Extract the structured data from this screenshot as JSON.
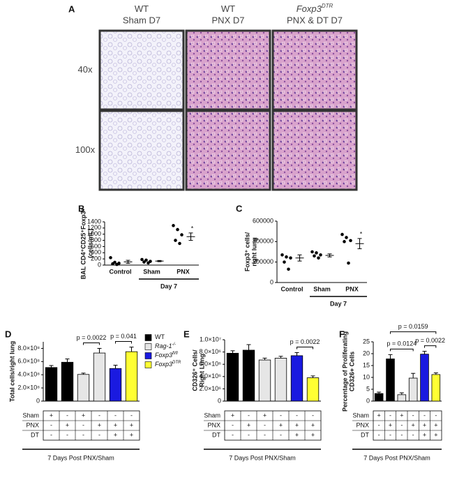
{
  "panel_a": {
    "label": "A",
    "columns": [
      {
        "line1": "WT",
        "line2": "Sham D7"
      },
      {
        "line1": "WT",
        "line2": "PNX D7"
      },
      {
        "line1": "Foxp3",
        "sup": "DTR",
        "line2": "PNX & DT D7"
      }
    ],
    "rows": [
      "40x",
      "100x"
    ]
  },
  "chart_data": [
    {
      "type": "dot",
      "panel": "B",
      "y_label": [
        "BAL  CD4⁺CD25⁺Foxp3⁺",
        "(cells/mL)"
      ],
      "categories": [
        "Control",
        "Sham",
        "PNX"
      ],
      "points": [
        [
          240,
          90,
          60,
          40,
          20
        ],
        [
          180,
          160,
          120,
          100,
          70
        ],
        [
          1280,
          1150,
          980,
          800,
          700
        ]
      ],
      "means": [
        105,
        130,
        920
      ],
      "errors": [
        50,
        20,
        120
      ],
      "ylim": [
        0,
        1400
      ],
      "yticks": [
        0,
        200,
        400,
        600,
        800,
        1000,
        1200,
        1400
      ],
      "star": "*",
      "group": {
        "label": "Day 7",
        "from": 1,
        "to": 2
      }
    },
    {
      "type": "dot",
      "panel": "C",
      "y_label": [
        "Foxp3⁺ cells/",
        "right lung"
      ],
      "categories": [
        "Control",
        "Sham",
        "PNX"
      ],
      "points": [
        [
          270000,
          250000,
          240000,
          200000,
          130000
        ],
        [
          300000,
          290000,
          270000,
          260000,
          240000
        ],
        [
          470000,
          440000,
          410000,
          400000,
          190000
        ]
      ],
      "means": [
        240000,
        265000,
        380000
      ],
      "errors": [
        30000,
        15000,
        50000
      ],
      "ylim": [
        0,
        600000
      ],
      "yticks": [
        0,
        200000,
        400000,
        600000
      ],
      "star": "*",
      "group": {
        "label": "Day 7",
        "from": 1,
        "to": 2
      }
    },
    {
      "type": "bar",
      "panel": "D",
      "y_label": [
        "Total cells/right lung"
      ],
      "values": [
        510000000,
        590000000,
        405000000,
        730000000,
        495000000,
        750000000
      ],
      "errors": [
        30000000,
        50000000,
        20000000,
        70000000,
        50000000,
        70000000
      ],
      "colors": [
        "#000000",
        "#000000",
        "#e6e6e6",
        "#e6e6e6",
        "#1a1ae0",
        "#ffff33"
      ],
      "ylim": [
        0,
        900000000
      ],
      "yticks": [
        0,
        {
          "value": 200000000,
          "label": "2.0×10⁸"
        },
        {
          "value": 400000000,
          "label": "4.0×10⁸"
        },
        {
          "value": 600000000,
          "label": "6.0×10⁸"
        },
        {
          "value": 800000000,
          "label": "8.0×10⁸"
        }
      ],
      "annotations": [
        {
          "text": "p = 0.0022",
          "bars": [
            2,
            3
          ]
        },
        {
          "text": "p = 0.041",
          "bars": [
            4,
            5
          ]
        }
      ],
      "legend": [
        {
          "name": "WT",
          "color": "#000000"
        },
        {
          "name": "Rag-1",
          "sup": "-/-",
          "color": "#e6e6e6"
        },
        {
          "name": "Foxp3",
          "sup": "fl/fl",
          "color": "#1a1ae0"
        },
        {
          "name": "Foxp3",
          "sup": "DTR",
          "color": "#ffff33"
        }
      ],
      "table": {
        "rows": [
          {
            "label": "Sham",
            "cells": [
              "+",
              "-",
              "+",
              "-",
              "-",
              "-"
            ]
          },
          {
            "label": "PNX",
            "cells": [
              "-",
              "+",
              "-",
              "+",
              "+",
              "+"
            ]
          },
          {
            "label": "DT",
            "cells": [
              "-",
              "-",
              "-",
              "-",
              "+",
              "+"
            ]
          }
        ],
        "footer": "7 Days  Post  PNX/Sham"
      }
    },
    {
      "type": "bar",
      "panel": "E",
      "y_label": [
        "CD326⁺ Cells/",
        "Right Lung"
      ],
      "values": [
        7800000,
        8300000,
        6700000,
        7000000,
        7400000,
        3800000
      ],
      "errors": [
        400000,
        900000,
        300000,
        300000,
        500000,
        300000
      ],
      "colors": [
        "#000000",
        "#000000",
        "#e6e6e6",
        "#e6e6e6",
        "#1a1ae0",
        "#ffff33"
      ],
      "ylim": [
        0,
        10000000
      ],
      "yticks": [
        0,
        {
          "value": 2000000,
          "label": "2.0×10⁶"
        },
        {
          "value": 4000000,
          "label": "4.0×10⁶"
        },
        {
          "value": 6000000,
          "label": "6.0×10⁶"
        },
        {
          "value": 8000000,
          "label": "8.0×10⁶"
        },
        {
          "value": 10000000,
          "label": "1.0×10⁷"
        }
      ],
      "annotations": [
        {
          "text": "p = 0.0022",
          "bars": [
            4,
            5
          ]
        }
      ],
      "table": {
        "rows": [
          {
            "label": "Sham",
            "cells": [
              "+",
              "-",
              "+",
              "-",
              "-",
              "-"
            ]
          },
          {
            "label": "PNX",
            "cells": [
              "-",
              "+",
              "-",
              "+",
              "+",
              "+"
            ]
          },
          {
            "label": "DT",
            "cells": [
              "-",
              "-",
              "-",
              "-",
              "+",
              "+"
            ]
          }
        ],
        "footer": "7 Days  Post  PNX/Sham"
      }
    },
    {
      "type": "bar",
      "panel": "F",
      "y_label": [
        "Percentage of Proliferating",
        "CD326+ Cells"
      ],
      "values": [
        3.2,
        17.8,
        2.7,
        9.7,
        19.8,
        11.2
      ],
      "errors": [
        0.6,
        1.8,
        0.8,
        2.0,
        1.2,
        0.7
      ],
      "colors": [
        "#000000",
        "#000000",
        "#e6e6e6",
        "#e6e6e6",
        "#1a1ae0",
        "#ffff33"
      ],
      "ylim": [
        0,
        25
      ],
      "yticks": [
        0,
        5,
        10,
        15,
        20,
        25
      ],
      "annotations": [
        {
          "text": "p = 0.0022",
          "bars": [
            4,
            5
          ]
        },
        {
          "text": "p = 0.0124",
          "bars": [
            1,
            3
          ]
        },
        {
          "text": "p = 0.0159",
          "bars": [
            1,
            5
          ]
        }
      ],
      "table": {
        "rows": [
          {
            "label": "Sham",
            "cells": [
              "+",
              "-",
              "+",
              "-",
              "-",
              "-"
            ]
          },
          {
            "label": "PNX",
            "cells": [
              "-",
              "+",
              "-",
              "+",
              "+",
              "+"
            ]
          },
          {
            "label": "DT",
            "cells": [
              "-",
              "-",
              "-",
              "-",
              "+",
              "+"
            ]
          }
        ],
        "footer": "7 Days  Post  PNX/Sham"
      }
    }
  ]
}
